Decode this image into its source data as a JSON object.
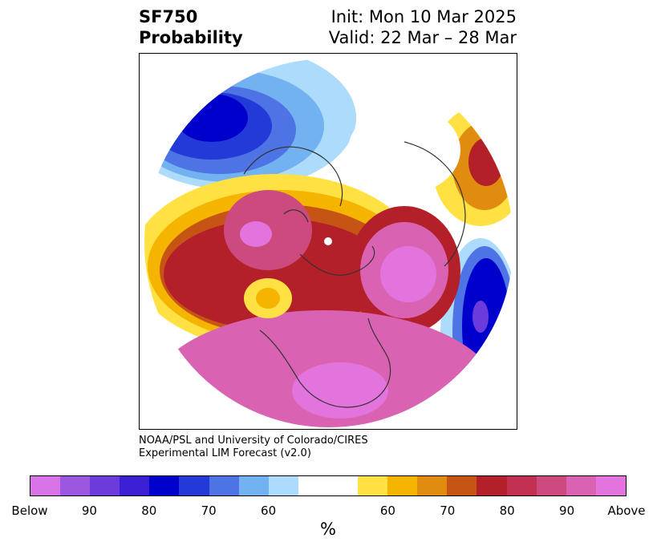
{
  "title": {
    "left_line1": "SF750",
    "left_line2": "Probability",
    "right_line1": "Init: Mon 10 Mar 2025",
    "right_line2": "Valid: 22 Mar – 28 Mar"
  },
  "credit": {
    "line1": "NOAA/PSL and University of Colorado/CIRES",
    "line2": "Experimental LIM Forecast (v2.0)"
  },
  "colorbar": {
    "unit": "%",
    "colors": [
      "#d774e8",
      "#9b57e0",
      "#6d3bdb",
      "#3a1fd4",
      "#0000cc",
      "#2339d8",
      "#4e73e5",
      "#73b2f1",
      "#acdbfb",
      "#ffffff",
      "#ffe143",
      "#f4b400",
      "#e08c0e",
      "#c65515",
      "#b3202a",
      "#c13050",
      "#cc4a7e",
      "#d962b3",
      "#e474dd"
    ],
    "ticks": [
      "Below",
      "90",
      "80",
      "70",
      "60",
      "60",
      "70",
      "80",
      "90",
      "Above"
    ]
  }
}
